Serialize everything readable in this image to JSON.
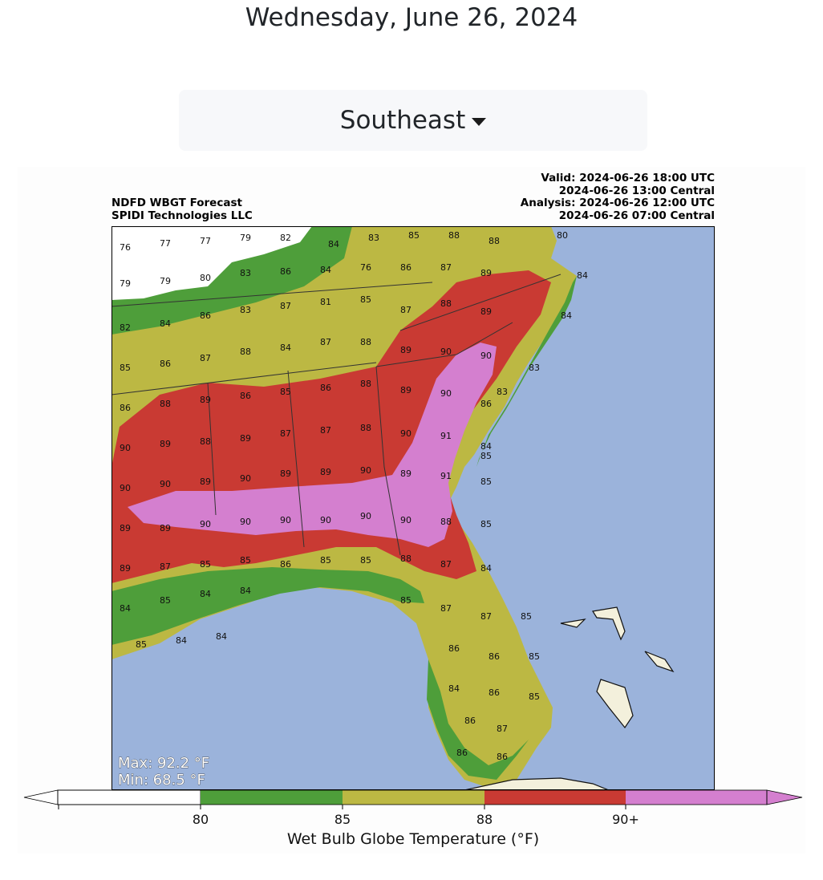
{
  "page": {
    "date": "Wednesday, June 26, 2024"
  },
  "region_selector": {
    "selected": "Southeast",
    "icon": "caret-down-icon"
  },
  "map": {
    "title_line1": "NDFD WBGT Forecast",
    "title_line2": "SPIDI Technologies LLC",
    "valid_utc": "Valid: 2024-06-26 18:00 UTC",
    "valid_central": "2024-06-26 13:00 Central",
    "analysis_utc": "Analysis: 2024-06-26 12:00 UTC",
    "analysis_central": "2024-06-26 07:00 Central",
    "max_label": "Max: 92.2 °F",
    "min_label": "Min: 68.5 °F",
    "colors": {
      "ocean": "#9bb3db",
      "land_outside": "#f3f0dc",
      "below_80": "#ffffff",
      "80_85": "#4e9e3a",
      "85_88": "#bcb843",
      "88_90": "#c93a33",
      "90_plus": "#d47fcf"
    }
  },
  "colorbar": {
    "title": "Wet Bulb Globe Temperature (°F)",
    "tick_labels": [
      "80",
      "85",
      "88",
      "90+"
    ]
  }
}
